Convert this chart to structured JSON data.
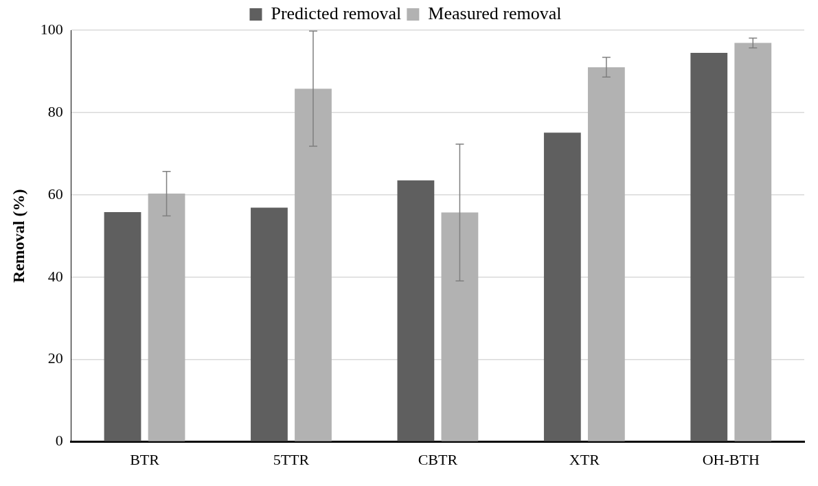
{
  "chart_data": {
    "type": "bar",
    "ylabel": "Removal (%)",
    "categories": [
      "BTR",
      "5TTR",
      "CBTR",
      "XTR",
      "OH-BTH"
    ],
    "series": [
      {
        "name": "Predicted removal",
        "color": "#5f5f5f",
        "values": [
          55.8,
          56.9,
          63.5,
          75.1,
          94.5
        ]
      },
      {
        "name": "Measured removal",
        "color": "#b2b2b2",
        "values": [
          60.3,
          85.8,
          55.7,
          91.0,
          96.9
        ],
        "errors": [
          5.4,
          14,
          16.6,
          2.4,
          1.2
        ]
      }
    ],
    "ylim": [
      0,
      100
    ],
    "yticks": [
      0,
      20,
      40,
      60,
      80,
      100
    ],
    "grid": "y",
    "legend": "top"
  }
}
